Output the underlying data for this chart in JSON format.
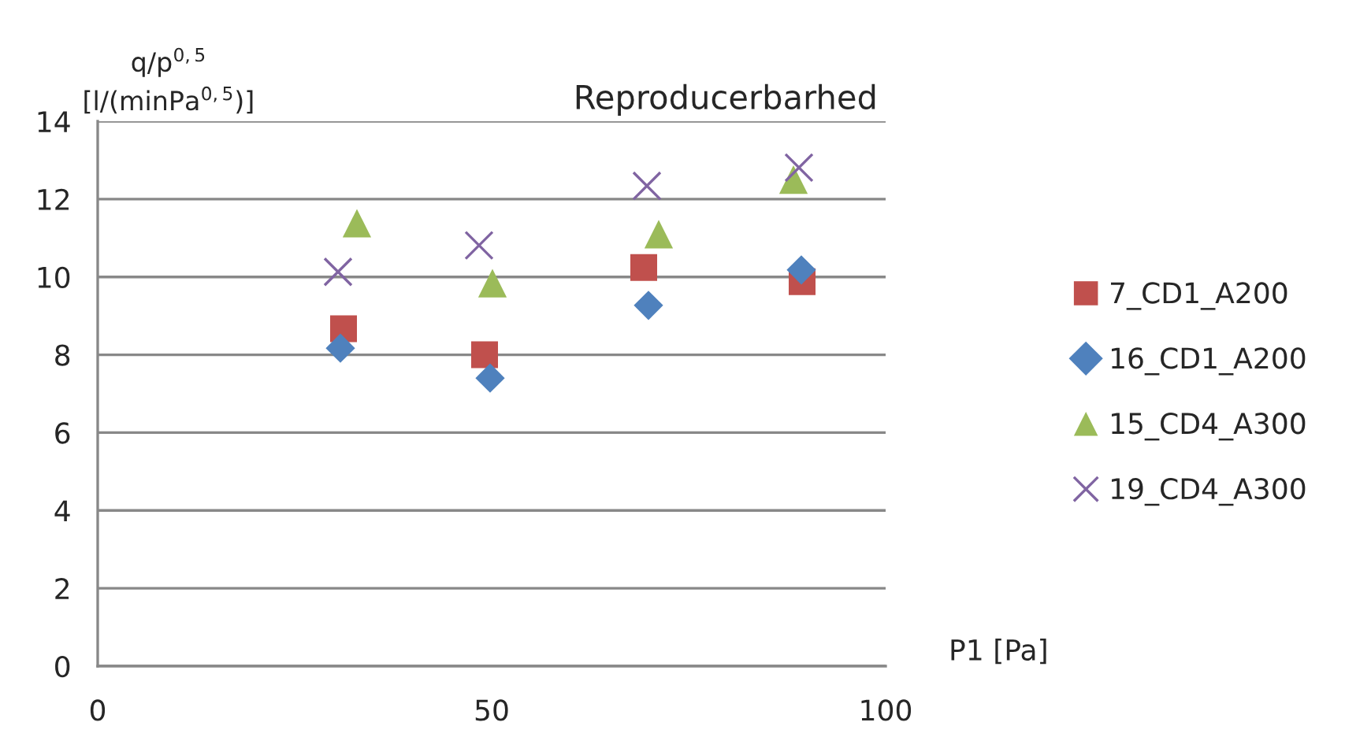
{
  "chart_data": {
    "type": "scatter",
    "title": "Reproducerbarhed",
    "xlabel": "P1 [Pa]",
    "ylabel": "q/p$^{0,5}$\n[l/(minPa$^{0,5}$)]",
    "xlim": [
      0,
      100
    ],
    "xticks": [
      0,
      50,
      100
    ],
    "ylim": [
      0,
      14
    ],
    "yticks": [
      0,
      2,
      4,
      6,
      8,
      10,
      12,
      14
    ],
    "grid": "y",
    "legend": "right",
    "series": [
      {
        "name": "7_CD1_A200",
        "color": "#c0504d",
        "marker": "square",
        "x": [
          31.2,
          49.1,
          69.3,
          89.4
        ],
        "values": [
          8.67,
          8.0,
          10.24,
          9.88
        ]
      },
      {
        "name": "16_CD1_A200",
        "color": "#4f81bd",
        "marker": "diamond",
        "x": [
          30.8,
          49.8,
          69.9,
          89.3
        ],
        "values": [
          8.17,
          7.4,
          9.27,
          10.18
        ]
      },
      {
        "name": "15_CD4_A300",
        "color": "#9bbb59",
        "marker": "triangle",
        "x": [
          32.9,
          50.1,
          71.2,
          88.3
        ],
        "values": [
          11.38,
          9.84,
          11.1,
          12.5
        ]
      },
      {
        "name": "19_CD4_A300",
        "color": "#8064a2",
        "marker": "cross",
        "x": [
          30.5,
          48.4,
          69.7,
          89.0
        ],
        "values": [
          10.13,
          10.81,
          12.34,
          12.81
        ]
      }
    ]
  }
}
